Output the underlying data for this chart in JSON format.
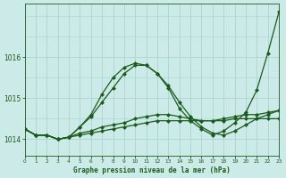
{
  "title": "Graphe pression niveau de la mer (hPa)",
  "bg_color": "#cceae8",
  "grid_color": "#aad4d0",
  "line_color": "#1a5c1a",
  "x_min": 0,
  "x_max": 23,
  "y_min": 1013.6,
  "y_max": 1017.3,
  "y_ticks": [
    1014,
    1015,
    1016
  ],
  "series": [
    {
      "x": [
        0,
        1,
        2,
        3,
        4,
        5,
        6,
        7,
        8,
        9,
        10,
        11,
        12,
        13,
        14,
        15,
        16,
        17,
        18,
        19,
        20,
        21,
        22,
        23
      ],
      "y": [
        1014.25,
        1014.1,
        1014.1,
        1014.0,
        1014.05,
        1014.1,
        1014.15,
        1014.2,
        1014.25,
        1014.3,
        1014.35,
        1014.4,
        1014.45,
        1014.45,
        1014.45,
        1014.45,
        1014.45,
        1014.45,
        1014.45,
        1014.5,
        1014.5,
        1014.5,
        1014.5,
        1014.5
      ],
      "marker": "D",
      "markersize": 2,
      "linewidth": 0.9,
      "linestyle": "-"
    },
    {
      "x": [
        0,
        1,
        2,
        3,
        4,
        5,
        6,
        7,
        8,
        9,
        10,
        11,
        12,
        13,
        14,
        15,
        16,
        17,
        18,
        19,
        20,
        21,
        22,
        23
      ],
      "y": [
        1014.25,
        1014.1,
        1014.1,
        1014.0,
        1014.05,
        1014.15,
        1014.2,
        1014.3,
        1014.35,
        1014.4,
        1014.5,
        1014.55,
        1014.6,
        1014.6,
        1014.55,
        1014.5,
        1014.45,
        1014.45,
        1014.5,
        1014.55,
        1014.6,
        1014.6,
        1014.65,
        1014.7
      ],
      "marker": "D",
      "markersize": 2,
      "linewidth": 0.9,
      "linestyle": "-"
    },
    {
      "x": [
        0,
        1,
        2,
        3,
        4,
        5,
        6,
        7,
        8,
        9,
        10,
        11,
        12,
        13,
        14,
        15,
        16,
        17,
        18,
        19,
        20,
        21,
        22,
        23
      ],
      "y": [
        1014.25,
        1014.1,
        1014.1,
        1014.0,
        1014.05,
        1014.3,
        1014.55,
        1014.9,
        1015.25,
        1015.6,
        1015.8,
        1015.8,
        1015.6,
        1015.3,
        1014.9,
        1014.55,
        1014.3,
        1014.15,
        1014.1,
        1014.2,
        1014.35,
        1014.5,
        1014.6,
        1014.7
      ],
      "marker": "D",
      "markersize": 2,
      "linewidth": 0.9,
      "linestyle": "-"
    },
    {
      "x": [
        0,
        1,
        2,
        3,
        4,
        5,
        6,
        7,
        8,
        9,
        10,
        11,
        12,
        13,
        14,
        15,
        16,
        17,
        18,
        19,
        20,
        21,
        22,
        23
      ],
      "y": [
        1014.25,
        1014.1,
        1014.1,
        1014.0,
        1014.05,
        1014.3,
        1014.6,
        1015.1,
        1015.5,
        1015.75,
        1015.85,
        1015.8,
        1015.6,
        1015.25,
        1014.75,
        1014.45,
        1014.25,
        1014.1,
        1014.2,
        1014.4,
        1014.65,
        1015.2,
        1016.1,
        1017.1
      ],
      "marker": "D",
      "markersize": 2,
      "linewidth": 0.9,
      "linestyle": "-"
    }
  ]
}
